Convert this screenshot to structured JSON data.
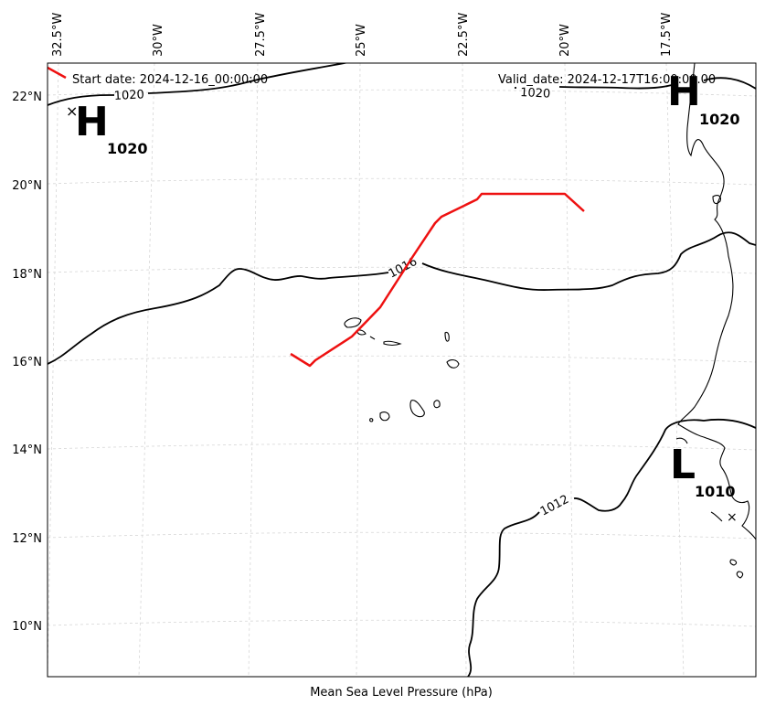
{
  "map": {
    "caption": "Mean Sea Level Pressure (hPa)",
    "lon_ticks": [
      "32.5°W",
      "30°W",
      "27.5°W",
      "25°W",
      "22.5°W",
      "20°W",
      "17.5°W"
    ],
    "lat_ticks": [
      "22°N",
      "20°N",
      "18°N",
      "16°N",
      "14°N",
      "12°N",
      "10°N"
    ],
    "legend": {
      "start": "Start date: 2024-12-16_00:00:00",
      "valid": "Valid_date: 2024-12-17T16:00:00.00",
      "track_color": "#ee1111"
    },
    "contour_labels": [
      "1020",
      "1020",
      "1016",
      "1012"
    ],
    "systems": [
      {
        "letter": "H",
        "value": "1020"
      },
      {
        "letter": "H",
        "value": "1020"
      },
      {
        "letter": "L",
        "value": "1010"
      }
    ],
    "grid": "on, dashed light grey",
    "colors": {
      "track": "#ee1111",
      "isobar": "#000000",
      "coast": "#000000",
      "grid": "#cccccc"
    }
  }
}
